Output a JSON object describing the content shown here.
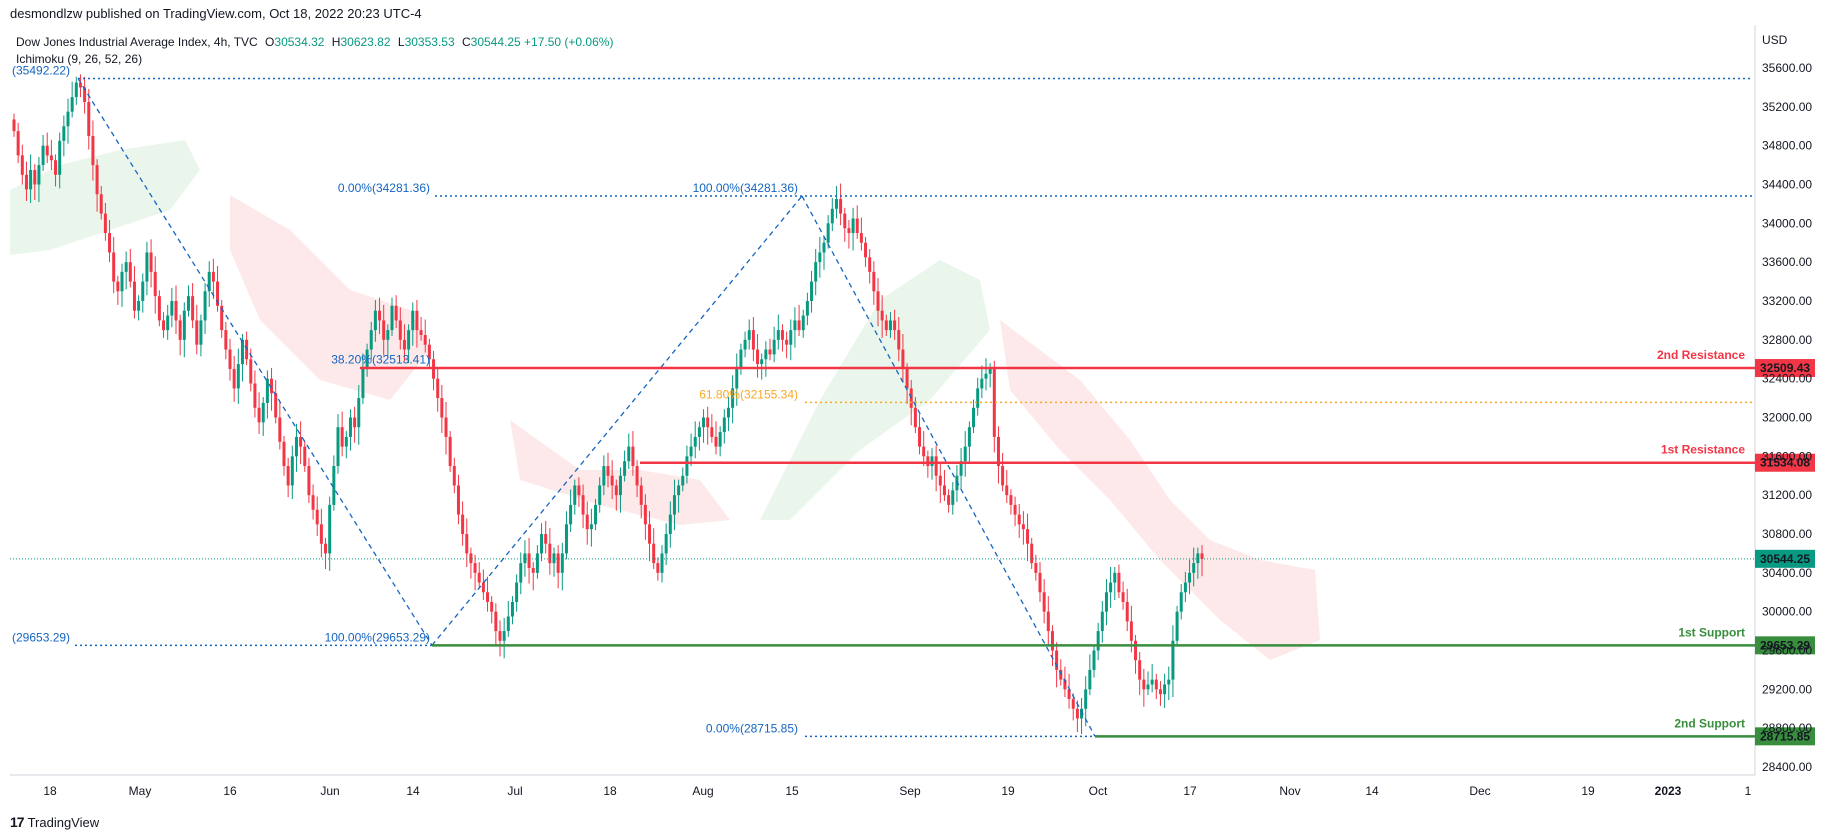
{
  "header": {
    "published": "desmondlzw published on TradingView.com, Oct 18, 2022 20:23 UTC-4"
  },
  "legend": {
    "symbol": "Dow Jones Industrial Average Index, 4h, TVC",
    "open_label": "O",
    "open": "30534.32",
    "high_label": "H",
    "high": "30623.82",
    "low_label": "L",
    "low": "30353.53",
    "close_label": "C",
    "close": "30544.25",
    "change": "+17.50 (+0.06%)",
    "indicator": "Ichimoku (9, 26, 52, 26)"
  },
  "footer": {
    "brand": "TradingView",
    "logo": "17"
  },
  "colors": {
    "bull": "#089981",
    "bear": "#f23645",
    "resistance": "#f23645",
    "support": "#388e3c",
    "fib": "#1565c0",
    "fib_mid": "#f9a825",
    "cloud_bull": "#e8f5e9",
    "cloud_bear": "#fde7e7",
    "price_line": "#089981"
  },
  "chart_data": {
    "type": "candlestick",
    "currency": "USD",
    "ylim": [
      28200,
      35800
    ],
    "y_ticks": [
      "35600.00",
      "35200.00",
      "34800.00",
      "34400.00",
      "34000.00",
      "33600.00",
      "33200.00",
      "32800.00",
      "32400.00",
      "32000.00",
      "31600.00",
      "31200.00",
      "30800.00",
      "30400.00",
      "30000.00",
      "29600.00",
      "29200.00",
      "28800.00",
      "28400.00"
    ],
    "x_ticks": [
      "18",
      "May",
      "16",
      "Jun",
      "14",
      "Jul",
      "18",
      "Aug",
      "15",
      "Sep",
      "19",
      "Oct",
      "17",
      "Nov",
      "14",
      "Dec",
      "19",
      "2023",
      "1"
    ],
    "last_price": "30544.25",
    "levels": [
      {
        "name": "2nd Resistance",
        "value": 32509.43,
        "label": "32509.43",
        "kind": "resistance"
      },
      {
        "name": "1st Resistance",
        "value": 31534.08,
        "label": "31534.08",
        "kind": "resistance"
      },
      {
        "name": "1st Support",
        "value": 29653.29,
        "label": "29653.29",
        "kind": "support"
      },
      {
        "name": "2nd Support",
        "value": 28715.85,
        "label": "28715.85",
        "kind": "support"
      }
    ],
    "annotations": [
      {
        "text": "(35492.22)",
        "value": 35492.22
      },
      {
        "text": "(29653.29)",
        "value": 29653.29
      },
      {
        "text": "0.00%(34281.36)",
        "value": 34281.36
      },
      {
        "text": "100.00%(34281.36)",
        "value": 34281.36
      },
      {
        "text": "38.20%(32513.41)",
        "value": 32513.41
      },
      {
        "text": "61.80%(32155.34)",
        "value": 32155.34
      },
      {
        "text": "100.00%(29653.29)",
        "value": 29653.29
      },
      {
        "text": "0.00%(28715.85)",
        "value": 28715.85
      }
    ],
    "zigzag": [
      {
        "date": "Apr 21",
        "value": 35492.22
      },
      {
        "date": "Jun 17",
        "value": 29653.29
      },
      {
        "date": "Aug 16",
        "value": 34281.36
      },
      {
        "date": "Sep 30",
        "value": 28715.85
      }
    ],
    "closes": [
      34950,
      34700,
      34500,
      34350,
      34550,
      34400,
      34600,
      34800,
      34700,
      34650,
      34500,
      34850,
      35000,
      35150,
      35300,
      35450,
      35400,
      35250,
      34900,
      34600,
      34300,
      34100,
      33900,
      33700,
      33400,
      33300,
      33500,
      33600,
      33400,
      33100,
      33200,
      33400,
      33700,
      33500,
      33250,
      33000,
      32900,
      33050,
      33200,
      33000,
      32800,
      33100,
      33250,
      33000,
      32750,
      33000,
      33300,
      33500,
      33400,
      33150,
      32900,
      32700,
      32500,
      32300,
      32550,
      32800,
      32600,
      32350,
      32100,
      31950,
      32150,
      32400,
      32250,
      32000,
      31750,
      31500,
      31300,
      31600,
      31800,
      31700,
      31500,
      31200,
      31050,
      30900,
      30700,
      30600,
      31100,
      31500,
      31900,
      31700,
      31800,
      32000,
      31900,
      32200,
      32500,
      32700,
      32900,
      33100,
      33000,
      32800,
      32900,
      33150,
      33000,
      32800,
      32700,
      32900,
      33100,
      32900,
      32850,
      32750,
      32600,
      32400,
      32200,
      32000,
      31800,
      31500,
      31300,
      31000,
      30800,
      30600,
      30500,
      30400,
      30300,
      30200,
      30100,
      30000,
      29800,
      29700,
      29800,
      29950,
      30100,
      30300,
      30500,
      30600,
      30450,
      30400,
      30600,
      30800,
      30700,
      30500,
      30600,
      30400,
      30600,
      30900,
      31100,
      31300,
      31200,
      31000,
      30850,
      30900,
      31100,
      31300,
      31500,
      31400,
      31300,
      31200,
      31400,
      31550,
      31700,
      31500,
      31300,
      31100,
      30900,
      30700,
      30500,
      30400,
      30600,
      30800,
      31000,
      31200,
      31300,
      31400,
      31600,
      31700,
      31800,
      31900,
      32000,
      31900,
      31800,
      31700,
      31850,
      32000,
      32100,
      32300,
      32500,
      32700,
      32800,
      32900,
      32700,
      32550,
      32600,
      32700,
      32650,
      32800,
      32900,
      32800,
      32750,
      32900,
      33000,
      32900,
      33050,
      33200,
      33400,
      33600,
      33700,
      33800,
      34000,
      34150,
      34250,
      34100,
      33950,
      33900,
      34050,
      33900,
      33800,
      33650,
      33500,
      33300,
      33100,
      33000,
      32900,
      33000,
      32900,
      32700,
      32500,
      32300,
      32100,
      31900,
      31700,
      31600,
      31500,
      31600,
      31400,
      31300,
      31200,
      31100,
      31250,
      31400,
      31550,
      31700,
      31900,
      32100,
      32300,
      32400,
      32450,
      32500,
      31800,
      31500,
      31300,
      31200,
      31100,
      31000,
      30900,
      30850,
      30700,
      30500,
      30400,
      30200,
      30000,
      29800,
      29600,
      29400,
      29300,
      29200,
      29100,
      29000,
      28900,
      29000,
      29200,
      29400,
      29600,
      29800,
      30000,
      30200,
      30300,
      30400,
      30200,
      30100,
      29900,
      29700,
      29500,
      29300,
      29200,
      29250,
      29300,
      29200,
      29150,
      29250,
      29300,
      29700,
      30000,
      30200,
      30300,
      30400,
      30500,
      30600,
      30544.25
    ]
  }
}
